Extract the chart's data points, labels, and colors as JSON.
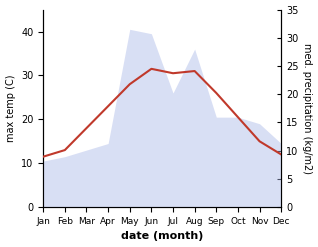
{
  "months": [
    "Jan",
    "Feb",
    "Mar",
    "Apr",
    "May",
    "Jun",
    "Jul",
    "Aug",
    "Sep",
    "Oct",
    "Nov",
    "Dec"
  ],
  "temp": [
    11.5,
    13.0,
    18.0,
    23.0,
    28.0,
    31.5,
    30.5,
    31.0,
    26.0,
    20.5,
    15.0,
    12.0
  ],
  "precip_left": [
    10.5,
    11.5,
    13.0,
    14.5,
    40.5,
    39.5,
    26.0,
    36.0,
    20.5,
    20.5,
    19.0,
    14.5
  ],
  "temp_color": "#c0392b",
  "precip_fill_color": "#aab8e8",
  "ylabel_left": "max temp (C)",
  "ylabel_right": "med. precipitation (kg/m2)",
  "xlabel": "date (month)",
  "ylim_left": [
    0,
    45
  ],
  "ylim_right": [
    0,
    35
  ],
  "left_yticks": [
    0,
    10,
    20,
    30,
    40
  ],
  "right_yticks": [
    0,
    5,
    10,
    15,
    20,
    25,
    30,
    35
  ]
}
